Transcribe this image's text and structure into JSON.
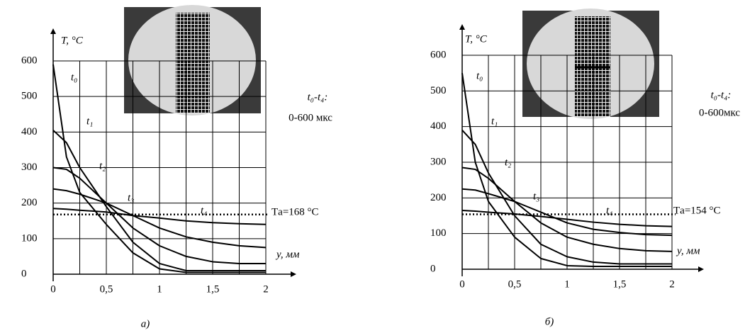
{
  "chart_data": [
    {
      "type": "line",
      "y_label": "T, °C",
      "x_label": "y, мм",
      "caption": "а)",
      "annotations": [
        "t₀-t₄:",
        "0-600 мкс"
      ],
      "reference_line": {
        "value": 168,
        "label": "Tа=168 °C"
      },
      "x": [
        0,
        0.125,
        0.25,
        0.5,
        0.75,
        1,
        1.25,
        1.5,
        1.75,
        2
      ],
      "series": [
        {
          "name": "t₀",
          "color": "#000000",
          "values": [
            590,
            330,
            230,
            140,
            60,
            15,
            5,
            5,
            5,
            5
          ]
        },
        {
          "name": "t₁",
          "color": "#000000",
          "values": [
            405,
            370,
            300,
            190,
            90,
            30,
            10,
            10,
            10,
            10
          ]
        },
        {
          "name": "t₂",
          "color": "#000000",
          "values": [
            300,
            295,
            270,
            200,
            130,
            80,
            50,
            35,
            30,
            30
          ]
        },
        {
          "name": "t₃",
          "color": "#000000",
          "values": [
            240,
            235,
            225,
            200,
            165,
            130,
            105,
            90,
            80,
            75
          ]
        },
        {
          "name": "t₄",
          "color": "#000000",
          "values": [
            185,
            183,
            180,
            175,
            165,
            158,
            150,
            145,
            142,
            140
          ]
        }
      ],
      "xlim": [
        0,
        2
      ],
      "ylim": [
        0,
        600
      ],
      "xticks": [
        0,
        {
          "value": 0.5,
          "label": "0,5"
        },
        1,
        {
          "value": 1.5,
          "label": "1,5"
        },
        2
      ],
      "yticks": [
        0,
        100,
        200,
        300,
        400,
        500,
        600
      ],
      "grid": true
    },
    {
      "type": "line",
      "y_label": "T, °C",
      "x_label": "y, мм",
      "caption": "б)",
      "annotations": [
        "t₀-t₄:",
        "0-600мкс"
      ],
      "reference_line": {
        "value": 154,
        "label": "Tа=154 °C"
      },
      "x": [
        0,
        0.125,
        0.25,
        0.5,
        0.75,
        1,
        1.25,
        1.5,
        1.75,
        2
      ],
      "series": [
        {
          "name": "t₀",
          "color": "#000000",
          "values": [
            550,
            300,
            190,
            90,
            30,
            10,
            8,
            8,
            8,
            8
          ]
        },
        {
          "name": "t₁",
          "color": "#000000",
          "values": [
            390,
            350,
            270,
            150,
            70,
            35,
            20,
            15,
            15,
            15
          ]
        },
        {
          "name": "t₂",
          "color": "#000000",
          "values": [
            285,
            280,
            255,
            190,
            130,
            90,
            70,
            58,
            52,
            50
          ]
        },
        {
          "name": "t₃",
          "color": "#000000",
          "values": [
            225,
            222,
            212,
            190,
            160,
            130,
            112,
            103,
            97,
            95
          ]
        },
        {
          "name": "t₄",
          "color": "#000000",
          "values": [
            165,
            163,
            160,
            155,
            148,
            140,
            132,
            126,
            122,
            120
          ]
        }
      ],
      "xlim": [
        0,
        2
      ],
      "ylim": [
        0,
        600
      ],
      "xticks": [
        0,
        {
          "value": 0.5,
          "label": "0,5"
        },
        1,
        {
          "value": 1.5,
          "label": "1,5"
        },
        2
      ],
      "yticks": [
        0,
        100,
        200,
        300,
        400,
        500,
        600
      ],
      "grid": true
    }
  ]
}
